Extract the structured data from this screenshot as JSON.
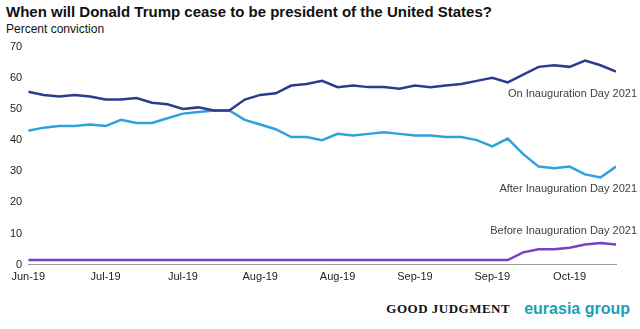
{
  "chart_data": {
    "type": "line",
    "title": "When will Donald Trump cease to be president of the United States?",
    "subtitle": "Percent conviction",
    "categories": [
      "Jun-19",
      null,
      null,
      null,
      null,
      "Jul-19",
      null,
      null,
      null,
      null,
      "Jul-19",
      null,
      null,
      null,
      null,
      "Aug-19",
      null,
      null,
      null,
      null,
      "Aug-19",
      null,
      null,
      null,
      null,
      "Sep-19",
      null,
      null,
      null,
      null,
      "Sep-19",
      null,
      null,
      null,
      null,
      "Oct-19",
      null,
      null,
      null
    ],
    "series": [
      {
        "name": "On Inauguration Day 2021",
        "color": "#2e3b8c",
        "values": [
          55.5,
          54.5,
          54,
          54.5,
          54,
          53,
          53,
          53.5,
          52,
          51.5,
          50,
          50.5,
          49.5,
          49.5,
          53,
          54.5,
          55,
          57.5,
          58,
          59,
          57,
          57.5,
          57,
          57,
          56.5,
          57.5,
          57,
          57.5,
          58,
          59,
          60,
          58.5,
          61,
          63.5,
          64,
          63.5,
          65.5,
          64,
          62
        ]
      },
      {
        "name": "After Inauguration Day 2021",
        "color": "#2fa1dc",
        "values": [
          43,
          44,
          44.5,
          44.5,
          45,
          44.5,
          46.5,
          45.5,
          45.5,
          47,
          48.5,
          49,
          49.5,
          49.5,
          46.5,
          45,
          43.5,
          41,
          41,
          40,
          42,
          41.5,
          42,
          42.5,
          42,
          41.5,
          41.5,
          41,
          41,
          40,
          38,
          40.5,
          35.5,
          31.5,
          31,
          31.5,
          29,
          28,
          31.5
        ]
      },
      {
        "name": "Before Inauguration Day 2021",
        "color": "#7a3fc4",
        "values": [
          1.5,
          1.5,
          1.5,
          1.5,
          1.5,
          1.5,
          1.5,
          1.5,
          1.5,
          1.5,
          1.5,
          1.5,
          1.5,
          1.5,
          1.5,
          1.5,
          1.5,
          1.5,
          1.5,
          1.5,
          1.5,
          1.5,
          1.5,
          1.5,
          1.5,
          1.5,
          1.5,
          1.5,
          1.5,
          1.5,
          1.5,
          1.5,
          4,
          5,
          5,
          5.5,
          6.5,
          7,
          6.5
        ]
      }
    ],
    "ylim": [
      0,
      70
    ],
    "yticks": [
      0,
      10,
      20,
      30,
      40,
      50,
      60,
      70
    ],
    "grid": false,
    "logos": [
      "GOOD JUDGMENT",
      "eurasia group"
    ]
  }
}
